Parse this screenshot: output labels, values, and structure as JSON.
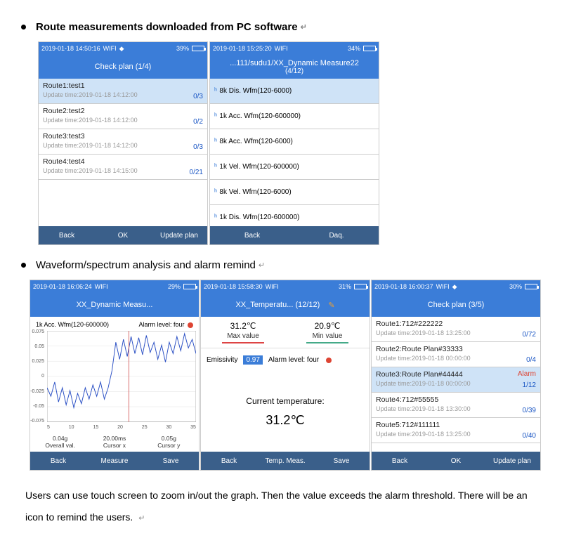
{
  "heading1": "Route measurements downloaded from PC software",
  "heading2": "Waveform/spectrum analysis and alarm remind",
  "body_text": "Users can use touch screen to zoom in/out the graph. Then the value exceeds the alarm threshold. There will be an icon to remind the users.",
  "screens": {
    "checkplan1": {
      "status": {
        "time": "2019-01-18 14:50:16",
        "wifi": "WIFI",
        "pct": "39%",
        "fill_pct": 39
      },
      "title": "Check plan (1/4)",
      "items": [
        {
          "name": "Route1:test1",
          "sub": "Update time:2019-01-18 14:12:00",
          "count": "0/3",
          "sel": true
        },
        {
          "name": "Route2:test2",
          "sub": "Update time:2019-01-18 14:12:00",
          "count": "0/2",
          "sel": false
        },
        {
          "name": "Route3:test3",
          "sub": "Update time:2019-01-18 14:12:00",
          "count": "0/3",
          "sel": false
        },
        {
          "name": "Route4:test4",
          "sub": "Update time:2019-01-18 14:15:00",
          "count": "0/21",
          "sel": false
        }
      ],
      "footer": [
        "Back",
        "OK",
        "Update plan"
      ]
    },
    "measure": {
      "status": {
        "time": "2019-01-18 15:25:20",
        "wifi": "WIFI",
        "pct": "34%",
        "fill_pct": 34
      },
      "title1": "...111/sudu1/XX_Dynamic Measure22",
      "title2": "(4/12)",
      "items": [
        {
          "label": "8k Dis. Wfm(120-6000)",
          "sel": true
        },
        {
          "label": "1k Acc. Wfm(120-600000)",
          "sel": false
        },
        {
          "label": "8k Acc. Wfm(120-6000)",
          "sel": false
        },
        {
          "label": "1k Vel. Wfm(120-600000)",
          "sel": false
        },
        {
          "label": "8k Vel. Wfm(120-6000)",
          "sel": false
        },
        {
          "label": "1k Dis. Wfm(120-600000)",
          "sel": false
        }
      ],
      "footer": [
        "Back",
        "Daq."
      ]
    },
    "waveform": {
      "status": {
        "time": "2019-01-18 16:06:24",
        "wifi": "WIFI",
        "pct": "29%",
        "fill_pct": 29
      },
      "title": "XX_Dynamic Measu...",
      "head_left": "1k Acc. Wfm(120-600000)",
      "head_right": "Alarm level: four",
      "chart": {
        "type": "line",
        "line_color": "#2a4fc4",
        "grid_color": "#666",
        "cursor_color": "#c44",
        "background": "#ffffff",
        "yticks": [
          "0.075",
          "0.05",
          "0.025",
          "0",
          "-0.025",
          "-0.05",
          "-0.075"
        ],
        "xticks": [
          "5",
          "10",
          "15",
          "20",
          "25",
          "30",
          "35"
        ],
        "cursor_x": 0.55,
        "points": [
          [
            0,
            -0.02
          ],
          [
            1,
            -0.035
          ],
          [
            2,
            -0.01
          ],
          [
            3,
            -0.045
          ],
          [
            4,
            -0.02
          ],
          [
            5,
            -0.05
          ],
          [
            6,
            -0.025
          ],
          [
            7,
            -0.055
          ],
          [
            8,
            -0.03
          ],
          [
            9,
            -0.048
          ],
          [
            10,
            -0.02
          ],
          [
            11,
            -0.04
          ],
          [
            12,
            -0.015
          ],
          [
            13,
            -0.035
          ],
          [
            14,
            -0.01
          ],
          [
            15,
            -0.04
          ],
          [
            16,
            -0.02
          ],
          [
            17,
            0.01
          ],
          [
            18,
            0.06
          ],
          [
            19,
            0.03
          ],
          [
            20,
            0.065
          ],
          [
            21,
            0.035
          ],
          [
            22,
            0.07
          ],
          [
            23,
            0.04
          ],
          [
            24,
            0.068
          ],
          [
            25,
            0.038
          ],
          [
            26,
            0.072
          ],
          [
            27,
            0.042
          ],
          [
            28,
            0.06
          ],
          [
            29,
            0.03
          ],
          [
            30,
            0.055
          ],
          [
            31,
            0.025
          ],
          [
            32,
            0.06
          ],
          [
            33,
            0.04
          ],
          [
            34,
            0.07
          ],
          [
            35,
            0.045
          ],
          [
            36,
            0.075
          ],
          [
            37,
            0.05
          ],
          [
            38,
            0.065
          ],
          [
            39,
            0.04
          ]
        ],
        "ymin": -0.08,
        "ymax": 0.08,
        "xmin": 0,
        "xmax": 39
      },
      "stats": [
        {
          "v": "0.04g",
          "l": "Overall val."
        },
        {
          "v": "20.00ms",
          "l": "Cursor x"
        },
        {
          "v": "0.05g",
          "l": "Cursor y"
        }
      ],
      "footer": [
        "Back",
        "Measure",
        "Save"
      ]
    },
    "temp": {
      "status": {
        "time": "2019-01-18 15:58:30",
        "wifi": "WIFI",
        "pct": "31%",
        "fill_pct": 31
      },
      "title": "XX_Temperatu... (12/12)",
      "max": {
        "v": "31.2℃",
        "l": "Max value",
        "bar": "#d44"
      },
      "min": {
        "v": "20.9℃",
        "l": "Min value",
        "bar": "#4a8"
      },
      "emissivity_label": "Emissivity",
      "emissivity_value": "0.97",
      "alarm_label": "Alarm level: four",
      "current_label": "Current temperature:",
      "current_value": "31.2℃",
      "footer": [
        "Back",
        "Temp. Meas.",
        "Save"
      ]
    },
    "checkplan2": {
      "status": {
        "time": "2019-01-18 16:00:37",
        "wifi": "WIFI",
        "pct": "30%",
        "fill_pct": 30
      },
      "title": "Check plan (3/5)",
      "items": [
        {
          "name": "Route1:712#222222",
          "sub": "Update time:2019-01-18 13:25:00",
          "count": "0/72",
          "sel": false,
          "alarm": ""
        },
        {
          "name": "Route2:Route Plan#33333",
          "sub": "Update time:2019-01-18 00:00:00",
          "count": "0/4",
          "sel": false,
          "alarm": ""
        },
        {
          "name": "Route3:Route Plan#44444",
          "sub": "Update time:2019-01-18 00:00:00",
          "count": "1/12",
          "sel": true,
          "alarm": "Alarm"
        },
        {
          "name": "Route4:712#55555",
          "sub": "Update time:2019-01-18 13:30:00",
          "count": "0/39",
          "sel": false,
          "alarm": ""
        },
        {
          "name": "Route5:712#111111",
          "sub": "Update time:2019-01-18 13:25:00",
          "count": "0/40",
          "sel": false,
          "alarm": ""
        }
      ],
      "footer": [
        "Back",
        "OK",
        "Update plan"
      ]
    }
  }
}
